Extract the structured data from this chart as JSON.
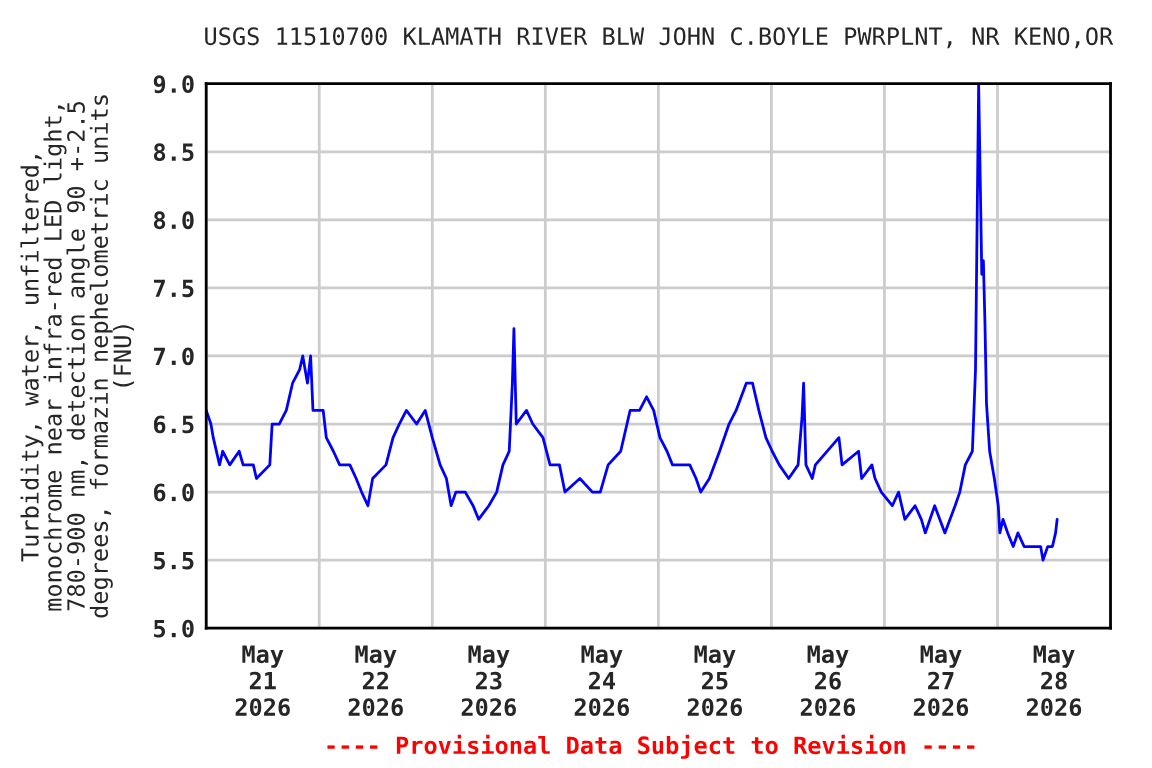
{
  "chart_data": {
    "type": "line",
    "title": "USGS 11510700 KLAMATH RIVER BLW JOHN C.BOYLE PWRPLNT, NR KENO,OR",
    "ylabel": "Turbidity, water, unfiltered,\nmonochrome near infra-red LED light,\n780-900 nm, detection angle 90 +-2.5\ndegrees, formazin nephelometric units\n(FNU)",
    "annotations": [
      "---- Provisional Data Subject to Revision ----"
    ],
    "series": [
      {
        "color": "#0000ff",
        "x": [
          "2026-05-21T00:00",
          "2026-05-21T01:00",
          "2026-05-21T01:30",
          "2026-05-21T02:50",
          "2026-05-21T03:30",
          "2026-05-21T05:00",
          "2026-05-21T07:00",
          "2026-05-21T07:50",
          "2026-05-21T10:00",
          "2026-05-21T10:40",
          "2026-05-21T13:30",
          "2026-05-21T14:00",
          "2026-05-21T15:30",
          "2026-05-21T17:00",
          "2026-05-21T18:20",
          "2026-05-21T19:50",
          "2026-05-21T20:30",
          "2026-05-21T21:30",
          "2026-05-21T22:10",
          "2026-05-21T22:40",
          "2026-05-22T00:50",
          "2026-05-22T01:30",
          "2026-05-22T03:00",
          "2026-05-22T04:20",
          "2026-05-22T06:30",
          "2026-05-22T07:50",
          "2026-05-22T09:00",
          "2026-05-22T10:20",
          "2026-05-22T11:20",
          "2026-05-22T14:10",
          "2026-05-22T15:40",
          "2026-05-22T17:00",
          "2026-05-22T18:30",
          "2026-05-22T20:40",
          "2026-05-22T22:30",
          "2026-05-23T00:00",
          "2026-05-23T01:40",
          "2026-05-23T03:00",
          "2026-05-23T04:00",
          "2026-05-23T05:00",
          "2026-05-23T07:00",
          "2026-05-23T08:40",
          "2026-05-23T09:50",
          "2026-05-23T12:00",
          "2026-05-23T13:40",
          "2026-05-23T15:00",
          "2026-05-23T16:20",
          "2026-05-23T17:00",
          "2026-05-23T17:20",
          "2026-05-23T17:50",
          "2026-05-23T20:00",
          "2026-05-23T21:20",
          "2026-05-23T23:30",
          "2026-05-24T01:00",
          "2026-05-24T03:00",
          "2026-05-24T04:10",
          "2026-05-24T07:20",
          "2026-05-24T10:00",
          "2026-05-24T11:40",
          "2026-05-24T13:20",
          "2026-05-24T16:00",
          "2026-05-24T17:20",
          "2026-05-24T18:00",
          "2026-05-24T20:00",
          "2026-05-24T21:30",
          "2026-05-24T23:00",
          "2026-05-25T00:20",
          "2026-05-25T01:50",
          "2026-05-25T03:00",
          "2026-05-25T06:40",
          "2026-05-25T08:00",
          "2026-05-25T09:00",
          "2026-05-25T10:50",
          "2026-05-25T13:00",
          "2026-05-25T15:00",
          "2026-05-25T16:30",
          "2026-05-25T18:40",
          "2026-05-25T20:00",
          "2026-05-25T21:20",
          "2026-05-25T22:50",
          "2026-05-26T00:10",
          "2026-05-26T01:40",
          "2026-05-26T03:40",
          "2026-05-26T05:40",
          "2026-05-26T06:30",
          "2026-05-26T06:50",
          "2026-05-26T07:20",
          "2026-05-26T08:40",
          "2026-05-26T09:20",
          "2026-05-26T14:20",
          "2026-05-26T15:00",
          "2026-05-26T18:30",
          "2026-05-26T19:10",
          "2026-05-26T21:20",
          "2026-05-26T22:00",
          "2026-05-26T23:20",
          "2026-05-27T01:40",
          "2026-05-27T03:00",
          "2026-05-27T04:20",
          "2026-05-27T06:30",
          "2026-05-27T07:50",
          "2026-05-27T08:40",
          "2026-05-27T10:40",
          "2026-05-27T12:50",
          "2026-05-27T15:00",
          "2026-05-27T16:00",
          "2026-05-27T17:10",
          "2026-05-27T18:40",
          "2026-05-27T19:20",
          "2026-05-27T20:00",
          "2026-05-27T20:20",
          "2026-05-27T20:40",
          "2026-05-27T21:00",
          "2026-05-27T21:20",
          "2026-05-27T21:40",
          "2026-05-27T22:20",
          "2026-05-27T23:20",
          "2026-05-28T00:10",
          "2026-05-28T00:30",
          "2026-05-28T01:10",
          "2026-05-28T02:10",
          "2026-05-28T03:20",
          "2026-05-28T04:20",
          "2026-05-28T05:40",
          "2026-05-28T09:10",
          "2026-05-28T09:40",
          "2026-05-28T10:40",
          "2026-05-28T11:40",
          "2026-05-28T12:20",
          "2026-05-28T12:40"
        ],
        "values": [
          6.6,
          6.5,
          6.4,
          6.2,
          6.3,
          6.2,
          6.3,
          6.2,
          6.2,
          6.1,
          6.2,
          6.5,
          6.5,
          6.6,
          6.8,
          6.9,
          7.0,
          6.8,
          7.0,
          6.6,
          6.6,
          6.4,
          6.3,
          6.2,
          6.2,
          6.1,
          6.0,
          5.9,
          6.1,
          6.2,
          6.4,
          6.5,
          6.6,
          6.5,
          6.6,
          6.4,
          6.2,
          6.1,
          5.9,
          6.0,
          6.0,
          5.9,
          5.8,
          5.9,
          6.0,
          6.2,
          6.3,
          6.8,
          7.2,
          6.5,
          6.6,
          6.5,
          6.4,
          6.2,
          6.2,
          6.0,
          6.1,
          6.0,
          6.0,
          6.2,
          6.3,
          6.5,
          6.6,
          6.6,
          6.7,
          6.6,
          6.4,
          6.3,
          6.2,
          6.2,
          6.1,
          6.0,
          6.1,
          6.3,
          6.5,
          6.6,
          6.8,
          6.8,
          6.6,
          6.4,
          6.3,
          6.2,
          6.1,
          6.2,
          6.55,
          6.8,
          6.2,
          6.1,
          6.2,
          6.4,
          6.2,
          6.3,
          6.1,
          6.2,
          6.1,
          6.0,
          5.9,
          6.0,
          5.8,
          5.9,
          5.8,
          5.7,
          5.9,
          5.7,
          5.9,
          6.0,
          6.2,
          6.3,
          6.9,
          9.0,
          8.3,
          7.6,
          7.7,
          7.25,
          6.65,
          6.3,
          6.1,
          5.9,
          5.7,
          5.8,
          5.7,
          5.6,
          5.7,
          5.6,
          5.6,
          5.5,
          5.6,
          5.6,
          5.7,
          5.8
        ]
      }
    ],
    "xlim": [
      "2026-05-21",
      "2026-05-29"
    ],
    "xticks": [
      {
        "value": "2026-05-21",
        "label": null
      },
      {
        "value": "2026-05-21T12:00",
        "label": "May\n21\n2026"
      },
      {
        "value": "2026-05-22",
        "label": null
      },
      {
        "value": "2026-05-22T12:00",
        "label": "May\n22\n2026"
      },
      {
        "value": "2026-05-23",
        "label": null
      },
      {
        "value": "2026-05-23T12:00",
        "label": "May\n23\n2026"
      },
      {
        "value": "2026-05-24",
        "label": null
      },
      {
        "value": "2026-05-24T12:00",
        "label": "May\n24\n2026"
      },
      {
        "value": "2026-05-25",
        "label": null
      },
      {
        "value": "2026-05-25T12:00",
        "label": "May\n25\n2026"
      },
      {
        "value": "2026-05-26",
        "label": null
      },
      {
        "value": "2026-05-26T12:00",
        "label": "May\n26\n2026"
      },
      {
        "value": "2026-05-27",
        "label": null
      },
      {
        "value": "2026-05-27T12:00",
        "label": "May\n27\n2026"
      },
      {
        "value": "2026-05-28",
        "label": null
      },
      {
        "value": "2026-05-28T12:00",
        "label": "May\n28\n2026"
      },
      {
        "value": "2026-05-29",
        "label": null
      }
    ],
    "ylim": [
      5.0,
      9.0
    ],
    "yticks": [
      {
        "value": 5.0,
        "label": "5.0"
      },
      {
        "value": 5.5,
        "label": "5.5"
      },
      {
        "value": 6.0,
        "label": "6.0"
      },
      {
        "value": 6.5,
        "label": "6.5"
      },
      {
        "value": 7.0,
        "label": "7.0"
      },
      {
        "value": 7.5,
        "label": "7.5"
      },
      {
        "value": 8.0,
        "label": "8.0"
      },
      {
        "value": 8.5,
        "label": "8.5"
      },
      {
        "value": 9.0,
        "label": "9.0"
      }
    ],
    "grid": true
  }
}
